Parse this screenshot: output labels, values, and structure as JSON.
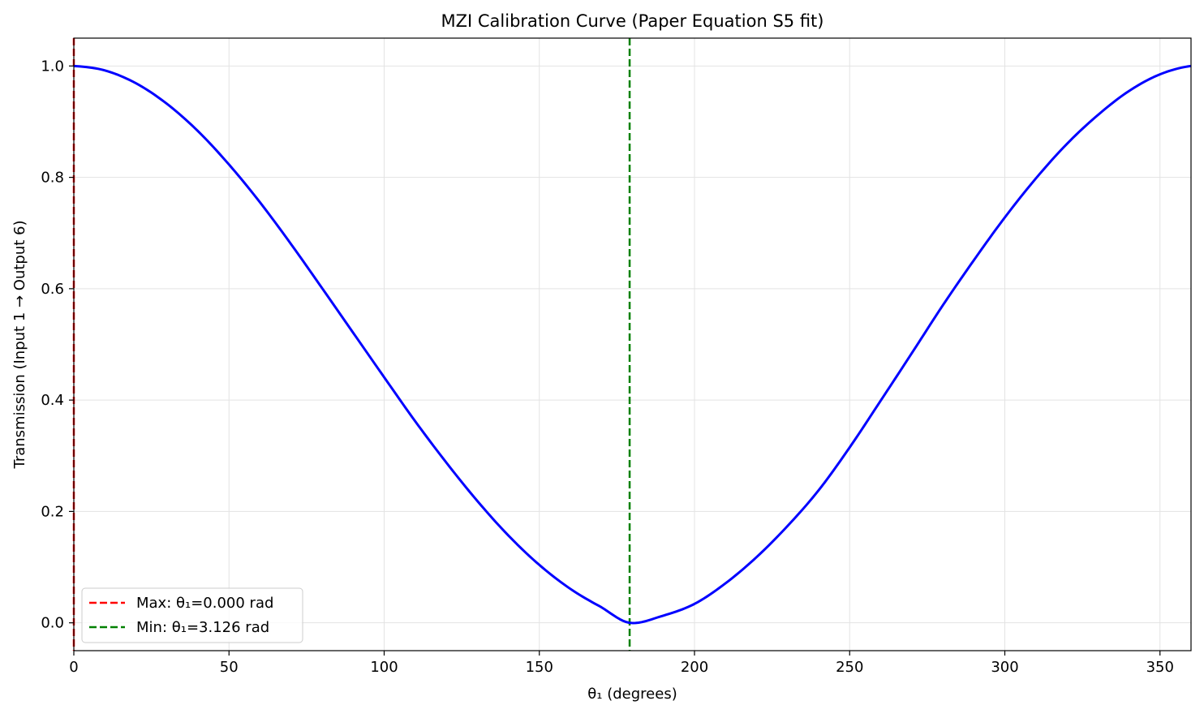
{
  "chart_data": {
    "type": "line",
    "title": "MZI Calibration Curve (Paper Equation S5 fit)",
    "xlabel": "θ₁ (degrees)",
    "ylabel": "Transmission (Input 1 → Output 6)",
    "xlim": [
      0,
      360
    ],
    "ylim": [
      -0.05,
      1.05
    ],
    "xticks": [
      0,
      50,
      100,
      150,
      200,
      250,
      300,
      350
    ],
    "yticks": [
      0.0,
      0.2,
      0.4,
      0.6,
      0.8,
      1.0
    ],
    "xtick_labels": [
      "0",
      "50",
      "100",
      "150",
      "200",
      "250",
      "300",
      "350"
    ],
    "ytick_labels": [
      "0.0",
      "0.2",
      "0.4",
      "0.6",
      "0.8",
      "1.0"
    ],
    "grid": true,
    "legend_position": "lower-left",
    "series": [
      {
        "color": "#0000ff",
        "x": [
          0,
          10,
          20,
          30,
          40,
          50,
          60,
          70,
          80,
          90,
          100,
          110,
          120,
          130,
          140,
          150,
          160,
          170,
          179.1,
          190,
          200,
          210,
          220,
          230,
          240,
          250,
          260,
          270,
          280,
          290,
          300,
          310,
          320,
          330,
          340,
          350,
          360
        ],
        "y": [
          1.0,
          0.992,
          0.969,
          0.932,
          0.883,
          0.823,
          0.755,
          0.68,
          0.601,
          0.521,
          0.441,
          0.362,
          0.288,
          0.219,
          0.157,
          0.104,
          0.061,
          0.028,
          0.0,
          0.013,
          0.034,
          0.071,
          0.118,
          0.174,
          0.238,
          0.315,
          0.399,
          0.484,
          0.57,
          0.651,
          0.728,
          0.798,
          0.86,
          0.912,
          0.955,
          0.985,
          1.0
        ]
      }
    ],
    "vlines": [
      {
        "name": "Max: θ₁=0.000 rad",
        "x": 0.0,
        "color": "#ff0000",
        "style": "dashed"
      },
      {
        "name": "Min: θ₁=3.126 rad",
        "x": 179.1,
        "color": "#008000",
        "style": "dashed"
      }
    ]
  }
}
